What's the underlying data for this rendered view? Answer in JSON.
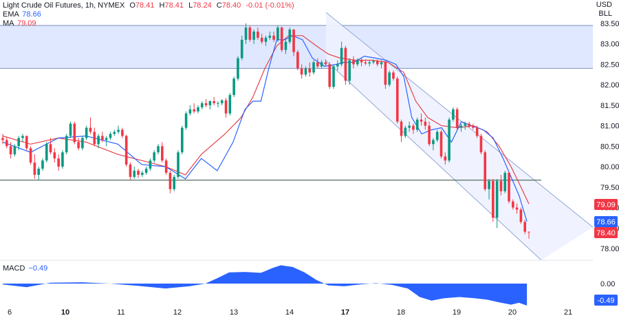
{
  "header": {
    "title": "Light Crude Oil Futures, 1h, NYMEX",
    "open_label": "O",
    "open": "78.41",
    "high_label": "H",
    "high": "78.41",
    "low_label": "L",
    "low": "78.24",
    "close_label": "C",
    "close": "78.40",
    "change": "-0.01 (-0.01%)"
  },
  "indicators": {
    "ema_label": "EMA",
    "ema_value": "78.66",
    "ma_label": "MA",
    "ma_value": "79.09",
    "macd_label": "MACD",
    "macd_value": "−0.49"
  },
  "units": {
    "currency": "USD",
    "volume_unit": "BLL"
  },
  "price_tags": [
    {
      "value": "79.09",
      "color": "#f23645"
    },
    {
      "value": "78.66",
      "color": "#2962ff"
    },
    {
      "value": "78.40",
      "color": "#f23645"
    }
  ],
  "macd_tags": [
    {
      "value": "0.00"
    },
    {
      "value": "-0.49",
      "color": "#2962ff"
    }
  ],
  "colors": {
    "up": "#089981",
    "down": "#f23645",
    "ema": "#2962ff",
    "ma": "#e5404a",
    "zone": "#dbe4ff",
    "channel": "#eef2ff",
    "macd": "#2962ff"
  },
  "chart_data": {
    "type": "candlestick",
    "y_ticks": [
      "83.50",
      "83.00",
      "82.50",
      "82.00",
      "81.50",
      "81.00",
      "80.50",
      "80.00",
      "79.50",
      "79.00",
      "78.50",
      "78.00"
    ],
    "x_ticks": [
      "6",
      "10",
      "11",
      "12",
      "13",
      "14",
      "17",
      "18",
      "19",
      "20",
      "21"
    ],
    "y_range": [
      77.85,
      83.55
    ],
    "resistance_zone": [
      82.4,
      83.45
    ],
    "support_level": 79.67,
    "channel_upper": [
      [
        15.45,
        83.7
      ],
      [
        21.4,
        78.5
      ]
    ],
    "channel_lower": [
      [
        15.45,
        82.0
      ],
      [
        20.7,
        77.85
      ]
    ],
    "ema_series": [
      [
        6,
        80.6
      ],
      [
        6.7,
        80.35
      ],
      [
        7.4,
        80.7
      ],
      [
        8.1,
        80.75
      ],
      [
        8.9,
        80.55
      ],
      [
        9.5,
        80.05
      ],
      [
        10.1,
        80.0
      ],
      [
        10.6,
        79.7
      ],
      [
        11.0,
        80.2
      ],
      [
        11.4,
        79.9
      ],
      [
        11.8,
        80.6
      ],
      [
        12.1,
        81.4
      ],
      [
        12.3,
        81.6
      ],
      [
        12.5,
        81.6
      ],
      [
        12.7,
        82.4
      ],
      [
        12.9,
        83.1
      ],
      [
        13.1,
        83.1
      ],
      [
        13.3,
        83.2
      ],
      [
        13.55,
        83.1
      ],
      [
        13.8,
        82.65
      ],
      [
        14.1,
        82.45
      ],
      [
        14.4,
        82.5
      ],
      [
        14.6,
        82.55
      ],
      [
        14.85,
        82.55
      ],
      [
        15.1,
        82.7
      ],
      [
        15.4,
        82.65
      ],
      [
        15.65,
        82.6
      ],
      [
        15.9,
        82.5
      ],
      [
        16.1,
        82.2
      ],
      [
        16.3,
        81.2
      ],
      [
        16.55,
        80.8
      ],
      [
        16.8,
        80.9
      ],
      [
        17.05,
        80.95
      ],
      [
        17.3,
        80.6
      ],
      [
        17.55,
        81.1
      ],
      [
        17.8,
        81.0
      ],
      [
        18.1,
        80.9
      ],
      [
        18.35,
        80.7
      ],
      [
        18.6,
        80.2
      ],
      [
        18.8,
        79.75
      ],
      [
        19.0,
        79.3
      ],
      [
        19.2,
        78.66
      ]
    ],
    "ma_series": [
      [
        6,
        80.75
      ],
      [
        6.7,
        80.55
      ],
      [
        7.4,
        80.7
      ],
      [
        8.1,
        80.6
      ],
      [
        8.9,
        80.3
      ],
      [
        9.5,
        80.15
      ],
      [
        10.1,
        80.0
      ],
      [
        10.6,
        79.8
      ],
      [
        11.0,
        80.3
      ],
      [
        11.6,
        80.8
      ],
      [
        12.0,
        81.2
      ],
      [
        12.3,
        81.7
      ],
      [
        12.6,
        82.4
      ],
      [
        12.9,
        82.95
      ],
      [
        13.2,
        83.2
      ],
      [
        13.55,
        83.2
      ],
      [
        13.9,
        82.95
      ],
      [
        14.2,
        82.75
      ],
      [
        14.5,
        82.65
      ],
      [
        14.9,
        82.6
      ],
      [
        15.3,
        82.6
      ],
      [
        15.7,
        82.55
      ],
      [
        16.1,
        82.3
      ],
      [
        16.4,
        81.6
      ],
      [
        16.7,
        81.2
      ],
      [
        17.05,
        81.0
      ],
      [
        17.45,
        80.95
      ],
      [
        17.85,
        81.0
      ],
      [
        18.2,
        80.85
      ],
      [
        18.5,
        80.5
      ],
      [
        18.8,
        80.0
      ],
      [
        19.0,
        79.6
      ],
      [
        19.25,
        79.09
      ]
    ],
    "candles": [
      [
        80.7,
        80.8,
        80.55,
        80.65
      ],
      [
        80.65,
        80.72,
        80.45,
        80.5
      ],
      [
        80.5,
        80.6,
        80.2,
        80.3
      ],
      [
        80.3,
        80.55,
        80.25,
        80.5
      ],
      [
        80.5,
        80.75,
        80.4,
        80.7
      ],
      [
        80.7,
        80.8,
        80.6,
        80.75
      ],
      [
        80.75,
        80.76,
        80.4,
        80.45
      ],
      [
        80.45,
        80.5,
        80.05,
        80.1
      ],
      [
        80.1,
        80.3,
        79.7,
        79.8
      ],
      [
        79.8,
        80.0,
        79.67,
        79.95
      ],
      [
        79.95,
        80.2,
        79.9,
        80.15
      ],
      [
        80.15,
        80.6,
        80.1,
        80.55
      ],
      [
        80.55,
        80.7,
        80.3,
        80.35
      ],
      [
        80.35,
        80.45,
        80.1,
        80.2
      ],
      [
        80.2,
        80.3,
        79.9,
        80.0
      ],
      [
        80.0,
        80.4,
        79.95,
        80.35
      ],
      [
        80.35,
        80.8,
        80.3,
        80.75
      ],
      [
        80.75,
        81.1,
        80.7,
        81.05
      ],
      [
        81.05,
        81.1,
        80.55,
        80.6
      ],
      [
        80.6,
        80.7,
        80.4,
        80.45
      ],
      [
        80.45,
        80.75,
        80.4,
        80.7
      ],
      [
        80.7,
        81.0,
        80.65,
        80.95
      ],
      [
        80.95,
        81.2,
        80.8,
        80.85
      ],
      [
        80.85,
        80.95,
        80.5,
        80.55
      ],
      [
        80.55,
        80.8,
        80.45,
        80.75
      ],
      [
        80.75,
        80.85,
        80.6,
        80.65
      ],
      [
        80.65,
        80.75,
        80.5,
        80.7
      ],
      [
        80.7,
        80.85,
        80.65,
        80.8
      ],
      [
        80.8,
        80.9,
        80.75,
        80.85
      ],
      [
        80.85,
        81.0,
        80.8,
        80.9
      ],
      [
        80.9,
        80.95,
        80.7,
        80.75
      ],
      [
        80.75,
        80.78,
        80.0,
        80.05
      ],
      [
        80.05,
        80.1,
        79.68,
        79.75
      ],
      [
        79.75,
        80.0,
        79.7,
        79.9
      ],
      [
        79.9,
        79.95,
        79.72,
        79.8
      ],
      [
        79.8,
        79.9,
        79.75,
        79.85
      ],
      [
        79.85,
        80.0,
        79.8,
        79.95
      ],
      [
        79.95,
        80.2,
        79.9,
        80.15
      ],
      [
        80.15,
        80.4,
        80.1,
        80.35
      ],
      [
        80.35,
        80.55,
        80.3,
        80.5
      ],
      [
        80.5,
        80.6,
        80.1,
        80.15
      ],
      [
        80.15,
        80.2,
        79.8,
        79.85
      ],
      [
        79.85,
        79.9,
        79.35,
        79.45
      ],
      [
        79.45,
        79.8,
        79.4,
        79.75
      ],
      [
        79.75,
        80.4,
        79.7,
        80.35
      ],
      [
        80.35,
        81.0,
        80.3,
        80.95
      ],
      [
        80.95,
        81.35,
        80.9,
        81.3
      ],
      [
        81.3,
        81.5,
        81.25,
        81.4
      ],
      [
        81.4,
        81.55,
        81.3,
        81.35
      ],
      [
        81.35,
        81.5,
        81.3,
        81.45
      ],
      [
        81.45,
        81.6,
        81.4,
        81.55
      ],
      [
        81.55,
        81.65,
        81.45,
        81.5
      ],
      [
        81.5,
        81.62,
        81.4,
        81.6
      ],
      [
        81.6,
        81.7,
        81.5,
        81.55
      ],
      [
        81.55,
        81.6,
        81.45,
        81.55
      ],
      [
        81.55,
        81.65,
        81.5,
        81.62
      ],
      [
        81.62,
        81.68,
        81.2,
        81.3
      ],
      [
        81.3,
        81.8,
        81.25,
        81.75
      ],
      [
        81.75,
        82.2,
        81.7,
        82.15
      ],
      [
        82.15,
        82.7,
        82.1,
        82.65
      ],
      [
        82.65,
        83.2,
        82.6,
        83.1
      ],
      [
        83.1,
        83.5,
        83.0,
        83.4
      ],
      [
        83.4,
        83.45,
        83.05,
        83.1
      ],
      [
        83.1,
        83.35,
        83.0,
        83.3
      ],
      [
        83.3,
        83.4,
        83.1,
        83.15
      ],
      [
        83.15,
        83.25,
        83.0,
        83.05
      ],
      [
        83.05,
        83.2,
        82.95,
        83.15
      ],
      [
        83.15,
        83.3,
        83.1,
        83.2
      ],
      [
        83.2,
        83.3,
        83.05,
        83.1
      ],
      [
        83.1,
        83.45,
        83.05,
        83.4
      ],
      [
        83.4,
        83.42,
        82.8,
        82.85
      ],
      [
        82.85,
        83.1,
        82.75,
        83.05
      ],
      [
        83.05,
        83.4,
        83.0,
        83.35
      ],
      [
        83.35,
        83.36,
        82.7,
        82.8
      ],
      [
        82.8,
        82.85,
        82.35,
        82.4
      ],
      [
        82.4,
        82.5,
        82.15,
        82.25
      ],
      [
        82.25,
        82.45,
        82.2,
        82.4
      ],
      [
        82.4,
        82.55,
        82.2,
        82.3
      ],
      [
        82.3,
        82.6,
        82.25,
        82.55
      ],
      [
        82.55,
        82.65,
        82.4,
        82.45
      ],
      [
        82.45,
        82.6,
        82.4,
        82.55
      ],
      [
        82.55,
        82.62,
        82.45,
        82.5
      ],
      [
        82.5,
        82.55,
        81.9,
        81.95
      ],
      [
        81.95,
        82.5,
        81.9,
        82.45
      ],
      [
        82.45,
        82.6,
        82.35,
        82.5
      ],
      [
        82.5,
        83.05,
        82.45,
        82.9
      ],
      [
        82.9,
        82.95,
        82.0,
        82.1
      ],
      [
        82.1,
        82.65,
        82.0,
        82.6
      ],
      [
        82.6,
        82.7,
        82.4,
        82.5
      ],
      [
        82.5,
        82.65,
        82.45,
        82.6
      ],
      [
        82.6,
        82.65,
        82.45,
        82.55
      ],
      [
        82.55,
        82.62,
        82.48,
        82.52
      ],
      [
        82.52,
        82.6,
        82.45,
        82.55
      ],
      [
        82.55,
        82.62,
        82.5,
        82.58
      ],
      [
        82.58,
        82.62,
        82.45,
        82.5
      ],
      [
        82.5,
        82.6,
        82.4,
        82.55
      ],
      [
        82.55,
        82.6,
        81.9,
        82.0
      ],
      [
        82.0,
        82.35,
        81.95,
        82.3
      ],
      [
        82.3,
        82.35,
        82.1,
        82.15
      ],
      [
        82.15,
        82.2,
        81.05,
        81.1
      ],
      [
        81.1,
        81.15,
        80.6,
        80.75
      ],
      [
        80.75,
        81.0,
        80.7,
        80.95
      ],
      [
        80.95,
        81.1,
        80.85,
        81.0
      ],
      [
        81.0,
        81.05,
        80.8,
        80.9
      ],
      [
        80.9,
        81.2,
        80.85,
        81.15
      ],
      [
        81.15,
        81.3,
        81.0,
        81.1
      ],
      [
        81.1,
        81.2,
        80.9,
        81.0
      ],
      [
        81.0,
        81.1,
        80.5,
        80.55
      ],
      [
        80.55,
        80.7,
        80.4,
        80.65
      ],
      [
        80.65,
        80.9,
        80.6,
        80.85
      ],
      [
        80.85,
        80.9,
        80.2,
        80.25
      ],
      [
        80.25,
        80.35,
        80.05,
        80.15
      ],
      [
        80.15,
        81.2,
        80.1,
        81.15
      ],
      [
        81.15,
        81.45,
        81.1,
        81.4
      ],
      [
        81.4,
        81.45,
        80.9,
        80.95
      ],
      [
        80.95,
        81.05,
        80.85,
        81.0
      ],
      [
        81.0,
        81.1,
        80.9,
        81.05
      ],
      [
        81.05,
        81.1,
        80.95,
        81.0
      ],
      [
        81.0,
        81.05,
        80.9,
        80.95
      ],
      [
        80.95,
        81.0,
        80.7,
        80.75
      ],
      [
        80.75,
        80.8,
        80.3,
        80.35
      ],
      [
        80.35,
        80.4,
        79.4,
        79.45
      ],
      [
        79.45,
        79.7,
        79.2,
        79.65
      ],
      [
        79.65,
        79.7,
        78.65,
        78.75
      ],
      [
        78.75,
        79.7,
        78.5,
        79.65
      ],
      [
        79.65,
        79.8,
        79.3,
        79.4
      ],
      [
        79.4,
        79.9,
        79.35,
        79.85
      ],
      [
        79.85,
        79.88,
        79.1,
        79.15
      ],
      [
        79.15,
        79.2,
        78.95,
        79.0
      ],
      [
        79.0,
        79.1,
        78.85,
        78.95
      ],
      [
        78.95,
        79.0,
        78.6,
        78.65
      ],
      [
        78.65,
        78.7,
        78.35,
        78.41
      ],
      [
        78.41,
        78.41,
        78.24,
        78.4
      ]
    ],
    "macd_series": [
      [
        6,
        -0.02
      ],
      [
        6.6,
        -0.08
      ],
      [
        7.2,
        0.02
      ],
      [
        8.0,
        0.03
      ],
      [
        8.7,
        0.0
      ],
      [
        9.4,
        -0.05
      ],
      [
        10.1,
        -0.11
      ],
      [
        10.7,
        -0.06
      ],
      [
        11.1,
        0.0
      ],
      [
        11.4,
        0.12
      ],
      [
        11.7,
        0.25
      ],
      [
        12.1,
        0.26
      ],
      [
        12.5,
        0.24
      ],
      [
        12.8,
        0.35
      ],
      [
        13.0,
        0.41
      ],
      [
        13.3,
        0.37
      ],
      [
        13.6,
        0.25
      ],
      [
        13.9,
        0.08
      ],
      [
        14.2,
        -0.04
      ],
      [
        14.6,
        -0.06
      ],
      [
        15.0,
        -0.02
      ],
      [
        15.4,
        0.01
      ],
      [
        15.8,
        -0.03
      ],
      [
        16.2,
        -0.11
      ],
      [
        16.5,
        -0.3
      ],
      [
        16.8,
        -0.38
      ],
      [
        17.1,
        -0.33
      ],
      [
        17.5,
        -0.3
      ],
      [
        17.9,
        -0.33
      ],
      [
        18.2,
        -0.36
      ],
      [
        18.5,
        -0.42
      ],
      [
        18.8,
        -0.47
      ],
      [
        19.0,
        -0.43
      ],
      [
        19.2,
        -0.49
      ]
    ],
    "macd_range": [
      -0.55,
      0.45
    ]
  }
}
